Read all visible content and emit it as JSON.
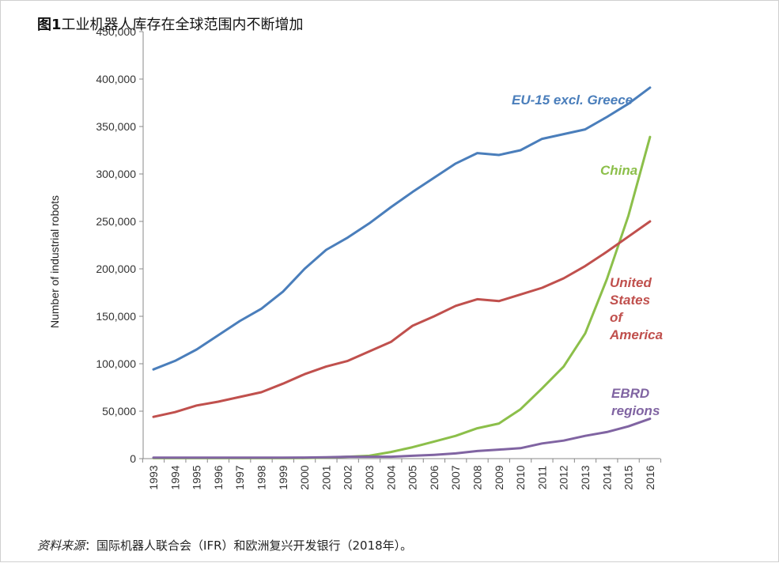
{
  "header": {
    "fig_num": "图1",
    "title": "工业机器人库存在全球范围内不断增加"
  },
  "footer": {
    "source_label": "资料来源",
    "source_text": "：国际机器人联合会（IFR）和欧洲复兴开发银行（2018年）。"
  },
  "chart_data": {
    "type": "line",
    "title": "",
    "xlabel": "",
    "ylabel": "Number of industrial robots",
    "ylim": [
      0,
      450000
    ],
    "y_ticks": [
      0,
      50000,
      100000,
      150000,
      200000,
      250000,
      300000,
      350000,
      400000,
      450000
    ],
    "y_tick_labels": [
      "0",
      "50,000",
      "100,000",
      "150,000",
      "200,000",
      "250,000",
      "300,000",
      "350,000",
      "400,000",
      "450,000"
    ],
    "grid": false,
    "legend": "inline labels next to lines",
    "x": [
      "1993",
      "1994",
      "1995",
      "1996",
      "1997",
      "1998",
      "1999",
      "2000",
      "2001",
      "2002",
      "2003",
      "2004",
      "2005",
      "2006",
      "2007",
      "2008",
      "2009",
      "2010",
      "2011",
      "2012",
      "2013",
      "2014",
      "2015",
      "2016"
    ],
    "series": [
      {
        "name": "EU-15 excl. Greece",
        "label_lines": [
          "EU-15 excl. Greece"
        ],
        "color": "#4a7ebb",
        "values": [
          94000,
          103000,
          115000,
          130000,
          145000,
          158000,
          176000,
          200000,
          220000,
          233000,
          248000,
          265000,
          281000,
          296000,
          311000,
          322000,
          320000,
          325000,
          337000,
          342000,
          347000,
          360000,
          374000,
          391000
        ]
      },
      {
        "name": "China",
        "label_lines": [
          "China"
        ],
        "color": "#8cbf4a",
        "values": [
          500,
          500,
          500,
          500,
          500,
          500,
          500,
          600,
          1000,
          2000,
          3000,
          7000,
          12000,
          18000,
          24000,
          32000,
          37000,
          52000,
          74000,
          97000,
          132000,
          189000,
          256000,
          339000
        ]
      },
      {
        "name": "United States of America",
        "label_lines": [
          "United",
          "States",
          "of",
          "America"
        ],
        "color": "#c0504d",
        "values": [
          44000,
          49000,
          56000,
          60000,
          65000,
          70000,
          79000,
          89000,
          97000,
          103000,
          113000,
          123000,
          140000,
          150000,
          161000,
          168000,
          166000,
          173000,
          180000,
          190000,
          203000,
          218000,
          234000,
          250000
        ]
      },
      {
        "name": "EBRD regions",
        "label_lines": [
          "EBRD",
          "regions"
        ],
        "color": "#8064a2",
        "values": [
          1000,
          1000,
          1000,
          1000,
          1000,
          1000,
          1000,
          1200,
          1500,
          2000,
          2000,
          2000,
          3000,
          4000,
          5500,
          8000,
          9500,
          11000,
          16000,
          19000,
          24000,
          28000,
          34000,
          42000
        ]
      }
    ]
  }
}
